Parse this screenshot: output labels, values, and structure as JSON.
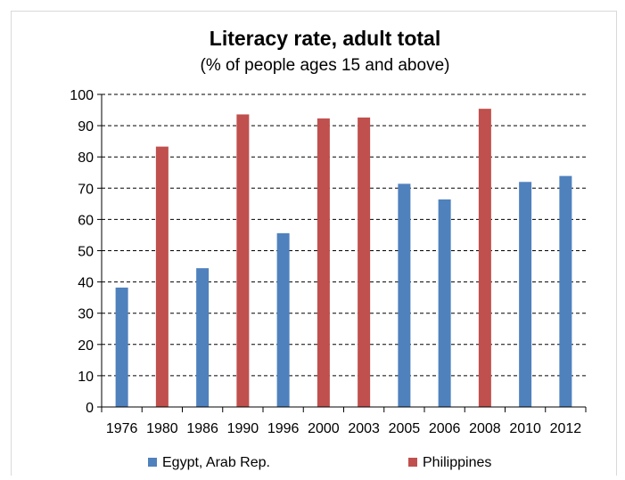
{
  "chart_data": {
    "type": "bar",
    "title": "Literacy rate, adult total",
    "subtitle": "(% of people ages 15 and above)",
    "categories": [
      "1976",
      "1980",
      "1986",
      "1990",
      "1996",
      "2000",
      "2003",
      "2005",
      "2006",
      "2008",
      "2010",
      "2012"
    ],
    "series": [
      {
        "name": "Egypt, Arab Rep.",
        "color": "#4f81bd",
        "values": [
          38.2,
          null,
          44.4,
          null,
          55.6,
          null,
          null,
          71.4,
          66.4,
          null,
          72.0,
          73.9
        ]
      },
      {
        "name": "Philippines",
        "color": "#c0504d",
        "values": [
          null,
          83.3,
          null,
          93.6,
          null,
          92.3,
          92.6,
          null,
          null,
          95.4,
          null,
          null
        ]
      }
    ],
    "ylim": [
      0,
      100
    ],
    "yticks": [
      0,
      10,
      20,
      30,
      40,
      50,
      60,
      70,
      80,
      90,
      100
    ],
    "grid": "horizontal dashed",
    "legend_position": "bottom"
  }
}
